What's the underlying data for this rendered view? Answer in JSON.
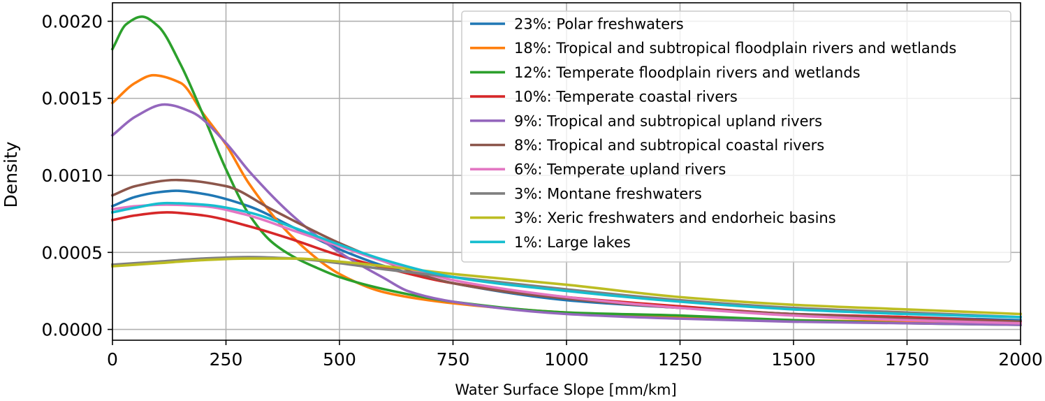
{
  "chart_data": {
    "type": "line",
    "title": "",
    "xlabel": "Water Surface Slope [mm/km]",
    "ylabel": "Density",
    "xlim": [
      0,
      2000
    ],
    "ylim": [
      -7e-05,
      0.00212
    ],
    "grid": true,
    "legend_position": "top-right",
    "x_ticks": [
      0,
      250,
      500,
      750,
      1000,
      1250,
      1500,
      1750,
      2000
    ],
    "x_tick_labels": [
      "0",
      "250",
      "500",
      "750",
      "1000",
      "1250",
      "1500",
      "1750",
      "2000"
    ],
    "y_ticks": [
      0,
      0.0005,
      0.001,
      0.0015,
      0.002
    ],
    "y_tick_labels": [
      "0.0000",
      "0.0005",
      "0.0010",
      "0.0015",
      "0.0020"
    ],
    "series": [
      {
        "name": "23%: Polar freshwaters",
        "color": "#1f77b4",
        "x": [
          0,
          50,
          100,
          140,
          200,
          300,
          400,
          500,
          600,
          750,
          1000,
          1250,
          1500,
          1750,
          2000
        ],
        "values": [
          0.0008,
          0.00086,
          0.00089,
          0.0009,
          0.00088,
          0.0008,
          0.00066,
          0.00052,
          0.00041,
          0.0003,
          0.00019,
          0.00014,
          0.0001,
          8e-05,
          6e-05
        ]
      },
      {
        "name": "18%: Tropical and subtropical floodplain rivers and wetlands",
        "color": "#ff7f0e",
        "x": [
          0,
          50,
          90,
          150,
          200,
          250,
          300,
          400,
          500,
          600,
          750,
          1000,
          1250,
          1500,
          1750,
          2000
        ],
        "values": [
          0.00147,
          0.0016,
          0.00165,
          0.0016,
          0.0014,
          0.0012,
          0.00095,
          0.00059,
          0.00036,
          0.00024,
          0.00017,
          0.00011,
          8e-05,
          6e-05,
          5e-05,
          4e-05
        ]
      },
      {
        "name": "12%: Temperate floodplain rivers and wetlands",
        "color": "#2ca02c",
        "x": [
          0,
          30,
          65,
          100,
          150,
          200,
          250,
          300,
          350,
          400,
          450,
          500,
          600,
          750,
          1000,
          1250,
          1500,
          1750,
          2000
        ],
        "values": [
          0.00182,
          0.00198,
          0.00203,
          0.00197,
          0.00172,
          0.00139,
          0.00104,
          0.00075,
          0.00057,
          0.00047,
          0.0004,
          0.00034,
          0.00026,
          0.00018,
          0.00011,
          9e-05,
          6e-05,
          4e-05,
          3e-05
        ]
      },
      {
        "name": "10%: Temperate coastal rivers",
        "color": "#d62728",
        "x": [
          0,
          50,
          120,
          200,
          300,
          400,
          500,
          600,
          750,
          1000,
          1250,
          1500,
          1750,
          2000
        ],
        "values": [
          0.00071,
          0.00074,
          0.00076,
          0.00074,
          0.00067,
          0.00058,
          0.00048,
          0.0004,
          0.0003,
          0.00021,
          0.00015,
          0.0001,
          8e-05,
          5e-05
        ]
      },
      {
        "name": "9%: Tropical and subtropical upland rivers",
        "color": "#9467bd",
        "x": [
          0,
          50,
          115,
          175,
          250,
          300,
          400,
          500,
          600,
          650,
          750,
          1000,
          1250,
          1500,
          1750,
          2000
        ],
        "values": [
          0.00126,
          0.00138,
          0.00146,
          0.00141,
          0.00121,
          0.00103,
          0.00073,
          0.0005,
          0.00033,
          0.00025,
          0.00018,
          0.0001,
          7e-05,
          5e-05,
          4e-05,
          3e-05
        ]
      },
      {
        "name": "8%: Tropical and subtropical coastal rivers",
        "color": "#8c564b",
        "x": [
          0,
          50,
          140,
          250,
          350,
          450,
          500,
          600,
          750,
          1000,
          1250,
          1500,
          1750,
          2000
        ],
        "values": [
          0.00087,
          0.00093,
          0.00097,
          0.00093,
          0.00078,
          0.00063,
          0.00056,
          0.00044,
          0.0003,
          0.0002,
          0.00014,
          0.0001,
          7e-05,
          5e-05
        ]
      },
      {
        "name": "6%: Temperate upland rivers",
        "color": "#e377c2",
        "x": [
          0,
          50,
          120,
          200,
          300,
          400,
          500,
          600,
          750,
          1000,
          1250,
          1500,
          1750,
          2000
        ],
        "values": [
          0.00078,
          0.0008,
          0.00081,
          0.0008,
          0.00074,
          0.00064,
          0.00054,
          0.00044,
          0.00032,
          0.00021,
          0.00014,
          9e-05,
          6e-05,
          4e-05
        ]
      },
      {
        "name": "3%: Montane freshwaters",
        "color": "#7f7f7f",
        "x": [
          0,
          100,
          200,
          300,
          400,
          500,
          600,
          750,
          1000,
          1250,
          1500,
          1750,
          2000
        ],
        "values": [
          0.00042,
          0.00044,
          0.00046,
          0.00047,
          0.00046,
          0.00043,
          0.00039,
          0.00034,
          0.00026,
          0.00019,
          0.00014,
          0.00011,
          8e-05
        ]
      },
      {
        "name": "3%: Xeric freshwaters and endorheic basins",
        "color": "#bcbd22",
        "x": [
          0,
          100,
          200,
          300,
          400,
          500,
          600,
          750,
          1000,
          1250,
          1500,
          1750,
          2000
        ],
        "values": [
          0.00041,
          0.00043,
          0.00045,
          0.00046,
          0.00046,
          0.00044,
          0.00041,
          0.00036,
          0.00029,
          0.00021,
          0.00016,
          0.00013,
          0.0001
        ]
      },
      {
        "name": "1%: Large lakes",
        "color": "#17becf",
        "x": [
          0,
          50,
          120,
          200,
          300,
          400,
          500,
          600,
          750,
          1000,
          1250,
          1500,
          1750,
          2000
        ],
        "values": [
          0.00076,
          0.00079,
          0.00082,
          0.00081,
          0.00076,
          0.00066,
          0.00055,
          0.00045,
          0.00034,
          0.00025,
          0.00018,
          0.00013,
          0.0001,
          8e-05
        ]
      }
    ]
  }
}
